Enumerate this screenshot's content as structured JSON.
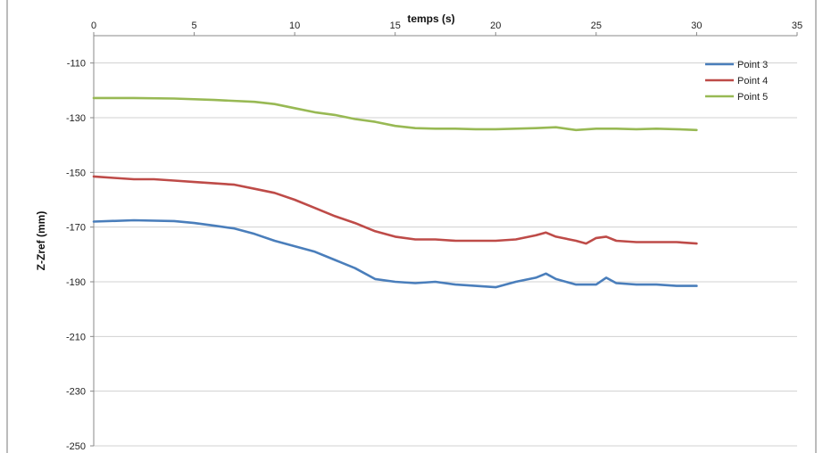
{
  "chart_data": {
    "type": "line",
    "xlabel": "temps (s)",
    "ylabel": "Z-Zref (mm)",
    "xlim": [
      0,
      35
    ],
    "ylim": [
      -250,
      -100
    ],
    "x_ticks": [
      0,
      5,
      10,
      15,
      20,
      25,
      30,
      35
    ],
    "y_ticks": [
      -110,
      -130,
      -150,
      -170,
      -190,
      -210,
      -230,
      -250
    ],
    "x_axis_position": "top",
    "grid": "horizontal",
    "legend_position": "top-right",
    "series": [
      {
        "name": "Point 3",
        "color": "#4a7ebb",
        "x": [
          0,
          2,
          4,
          5,
          6,
          7,
          8,
          9,
          10,
          11,
          12,
          13,
          14,
          15,
          16,
          17,
          18,
          19,
          20,
          21,
          22,
          22.5,
          23,
          24,
          25,
          25.5,
          26,
          27,
          28,
          29,
          30
        ],
        "y": [
          -168,
          -167.5,
          -167.8,
          -168.5,
          -169.5,
          -170.5,
          -172.5,
          -175,
          -177,
          -179,
          -182,
          -185,
          -189,
          -190,
          -190.5,
          -190,
          -191,
          -191.5,
          -192,
          -190,
          -188.5,
          -187,
          -189,
          -191,
          -191,
          -188.5,
          -190.5,
          -191,
          -191,
          -191.5,
          -191.5
        ]
      },
      {
        "name": "Point 4",
        "color": "#be4b48",
        "x": [
          0,
          1,
          2,
          3,
          4,
          5,
          6,
          7,
          8,
          9,
          10,
          11,
          12,
          13,
          14,
          15,
          16,
          17,
          18,
          19,
          20,
          21,
          22,
          22.5,
          23,
          24,
          24.5,
          25,
          25.5,
          26,
          27,
          28,
          29,
          30
        ],
        "y": [
          -151.5,
          -152,
          -152.5,
          -152.5,
          -153,
          -153.5,
          -154,
          -154.5,
          -156,
          -157.5,
          -160,
          -163,
          -166,
          -168.5,
          -171.5,
          -173.5,
          -174.5,
          -174.5,
          -175,
          -175,
          -175,
          -174.5,
          -173,
          -172,
          -173.5,
          -175,
          -176,
          -174,
          -173.5,
          -175,
          -175.5,
          -175.5,
          -175.5,
          -176
        ]
      },
      {
        "name": "Point 5",
        "color": "#98b954",
        "x": [
          0,
          2,
          4,
          6,
          8,
          9,
          10,
          11,
          12,
          13,
          14,
          15,
          16,
          17,
          18,
          19,
          20,
          21,
          22,
          23,
          24,
          25,
          26,
          27,
          28,
          29,
          30
        ],
        "y": [
          -122.8,
          -122.8,
          -123,
          -123.5,
          -124.2,
          -125,
          -126.5,
          -128,
          -129,
          -130.5,
          -131.5,
          -133,
          -133.8,
          -134,
          -134,
          -134.2,
          -134.2,
          -134,
          -133.8,
          -133.5,
          -134.5,
          -134,
          -134,
          -134.2,
          -134,
          -134.2,
          -134.5
        ]
      }
    ]
  }
}
